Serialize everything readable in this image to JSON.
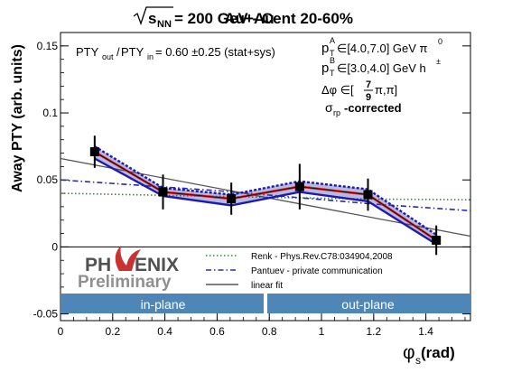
{
  "chart_data": {
    "type": "line",
    "title": "Au+Au√s_NN = 200 GeV - Cent 20-60%",
    "title_parts": {
      "prefix": "Au+Au",
      "sqrt_arg": "s",
      "sqrt_sub": "NN",
      "suffix": " = 200 GeV - Cent 20-60%"
    },
    "xlabel": "φ_s (rad)",
    "xlabel_parts": {
      "symbol": "φ",
      "sub": "s",
      "unit": " (rad)"
    },
    "ylabel": "Away PTY (arb. units)",
    "xlim": [
      0,
      1.5708
    ],
    "ylim": [
      -0.055,
      0.16
    ],
    "x_ticks": [
      0,
      0.2,
      0.4,
      0.6,
      0.8,
      1,
      1.2,
      1.4
    ],
    "x_tick_labels": [
      "0",
      "0.2",
      "0.4",
      "0.6",
      "0.8",
      "1",
      "1.2",
      "1.4"
    ],
    "y_ticks": [
      -0.05,
      0,
      0.05,
      0.1,
      0.15
    ],
    "y_tick_labels": [
      "-0.05",
      "0",
      "0.05",
      "0.1",
      "0.15"
    ],
    "grid": false,
    "ratio_text": {
      "lhs_a": "PTY",
      "lhs_sub_a": "out",
      "slash": "/",
      "lhs_b": "PTY",
      "lhs_sub_b": "in",
      "rhs": " = 0.60 ±0.25 (stat+sys)"
    },
    "cuts_text": [
      {
        "sym": "p",
        "sub": "T",
        "sup": "A",
        "rest": "∈[4.0,7.0] GeV π",
        "rest_sup": "0"
      },
      {
        "sym": "p",
        "sub": "T",
        "sup": "B",
        "rest": "∈[3.0,4.0] GeV h",
        "rest_sup": "±"
      }
    ],
    "dphi_text": {
      "prefix": "Δφ ∈[",
      "frac_num": "7",
      "frac_den": "9",
      "suffix": "π,π]"
    },
    "sigma_text": {
      "sym": "σ",
      "sub": "rp",
      "rest": "-corrected"
    },
    "logo": {
      "line1a": "PH",
      "line1b": "ENIX",
      "line2": "Preliminary"
    },
    "bands": {
      "left": "in-plane",
      "right": "out-plane",
      "divider_x": 0.7854,
      "color": "#4f86b8"
    },
    "points": {
      "x": [
        0.1309,
        0.3927,
        0.6545,
        0.9163,
        1.1781,
        1.4399
      ],
      "y": [
        0.071,
        0.041,
        0.036,
        0.045,
        0.039,
        0.005
      ],
      "err": [
        0.012,
        0.013,
        0.012,
        0.017,
        0.012,
        0.011
      ]
    },
    "band_upper": [
      0.075,
      0.044,
      0.039,
      0.049,
      0.043,
      0.009
    ],
    "band_lower": [
      0.066,
      0.038,
      0.031,
      0.041,
      0.034,
      0.002
    ],
    "series": [
      {
        "name": "Renk - Phys.Rev.C78:034904,2008",
        "color": "#2e8b3a",
        "style": "dotted",
        "x": [
          0,
          0.4,
          0.8,
          1.2,
          1.5708
        ],
        "y": [
          0.04,
          0.0385,
          0.037,
          0.0357,
          0.0352
        ]
      },
      {
        "name": "Pantuev - private communication",
        "color": "#2a2ab0",
        "style": "dashdot",
        "x": [
          0,
          0.3,
          0.6,
          0.9,
          1.2,
          1.5708
        ],
        "y": [
          0.05,
          0.046,
          0.042,
          0.037,
          0.032,
          0.027
        ]
      },
      {
        "name": "linear fit",
        "color": "#555555",
        "style": "solid",
        "x": [
          0,
          1.5708
        ],
        "y": [
          0.066,
          0.008
        ]
      }
    ]
  }
}
